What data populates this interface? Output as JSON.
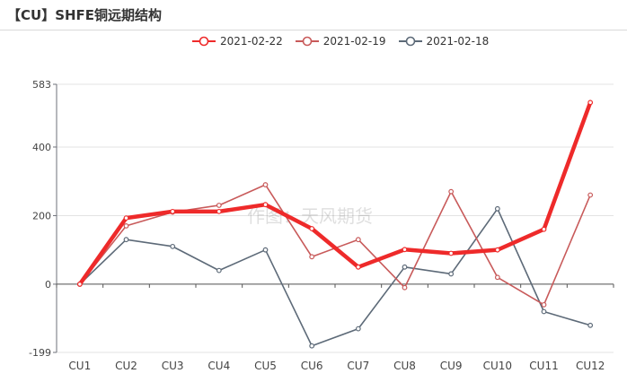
{
  "page": {
    "title": "【CU】SHFE铜远期结构"
  },
  "watermark": "作图：天风期货",
  "chart_data": {
    "type": "line",
    "title": "【CU】SHFE铜远期结构",
    "categories": [
      "CU1",
      "CU2",
      "CU3",
      "CU4",
      "CU5",
      "CU6",
      "CU7",
      "CU8",
      "CU9",
      "CU10",
      "CU11",
      "CU12"
    ],
    "ylim": [
      -199,
      583
    ],
    "yticks": [
      -199,
      0,
      200,
      400,
      583
    ],
    "legend_position": "top-center",
    "grid": "horizontal",
    "series": [
      {
        "name": "2021-02-22",
        "color": "#ee2a2a",
        "values": [
          0,
          193,
          212,
          212,
          232,
          162,
          50,
          101,
          90,
          100,
          160,
          530
        ]
      },
      {
        "name": "2021-02-19",
        "color": "#c85a5a",
        "values": [
          0,
          170,
          210,
          230,
          290,
          80,
          130,
          -10,
          270,
          20,
          -60,
          260
        ]
      },
      {
        "name": "2021-02-18",
        "color": "#5d6a78",
        "values": [
          0,
          130,
          110,
          40,
          100,
          -180,
          -130,
          50,
          30,
          220,
          -80,
          -120
        ]
      }
    ]
  }
}
